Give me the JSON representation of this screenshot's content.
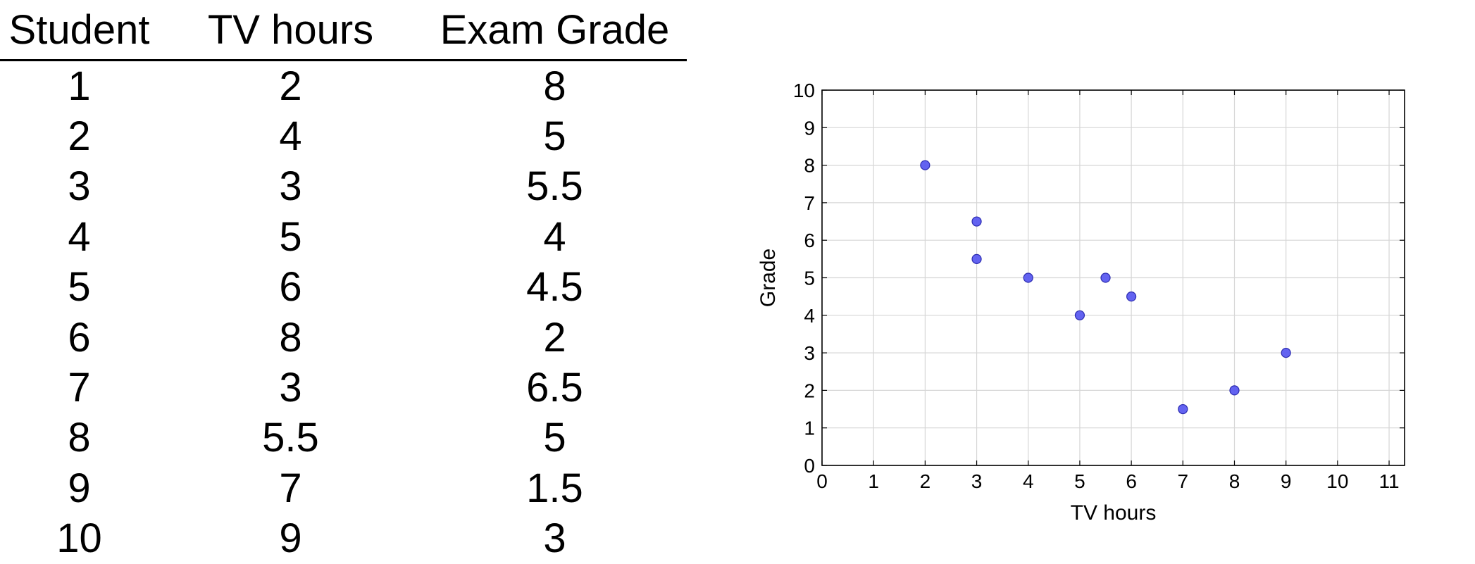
{
  "table": {
    "headers": [
      "Student",
      "TV hours",
      "Exam Grade"
    ],
    "rows": [
      [
        "1",
        "2",
        "8"
      ],
      [
        "2",
        "4",
        "5"
      ],
      [
        "3",
        "3",
        "5.5"
      ],
      [
        "4",
        "5",
        "4"
      ],
      [
        "5",
        "6",
        "4.5"
      ],
      [
        "6",
        "8",
        "2"
      ],
      [
        "7",
        "3",
        "6.5"
      ],
      [
        "8",
        "5.5",
        "5"
      ],
      [
        "9",
        "7",
        "1.5"
      ],
      [
        "10",
        "9",
        "3"
      ]
    ]
  },
  "chart_data": {
    "type": "scatter",
    "title": "",
    "xlabel": "TV hours",
    "ylabel": "Grade",
    "xlim": [
      0,
      11.3
    ],
    "ylim": [
      0,
      10
    ],
    "xticks": [
      "0",
      "1",
      "2",
      "3",
      "4",
      "5",
      "6",
      "7",
      "8",
      "9",
      "10",
      "11"
    ],
    "yticks": [
      "0",
      "1",
      "2",
      "3",
      "4",
      "5",
      "6",
      "7",
      "8",
      "9",
      "10"
    ],
    "grid": true,
    "marker_color": "#5b5bf0",
    "series": [
      {
        "points": [
          {
            "x": 2,
            "y": 8
          },
          {
            "x": 4,
            "y": 5
          },
          {
            "x": 3,
            "y": 5.5
          },
          {
            "x": 5,
            "y": 4
          },
          {
            "x": 6,
            "y": 4.5
          },
          {
            "x": 8,
            "y": 2
          },
          {
            "x": 3,
            "y": 6.5
          },
          {
            "x": 5.5,
            "y": 5
          },
          {
            "x": 7,
            "y": 1.5
          },
          {
            "x": 9,
            "y": 3
          }
        ]
      }
    ]
  }
}
